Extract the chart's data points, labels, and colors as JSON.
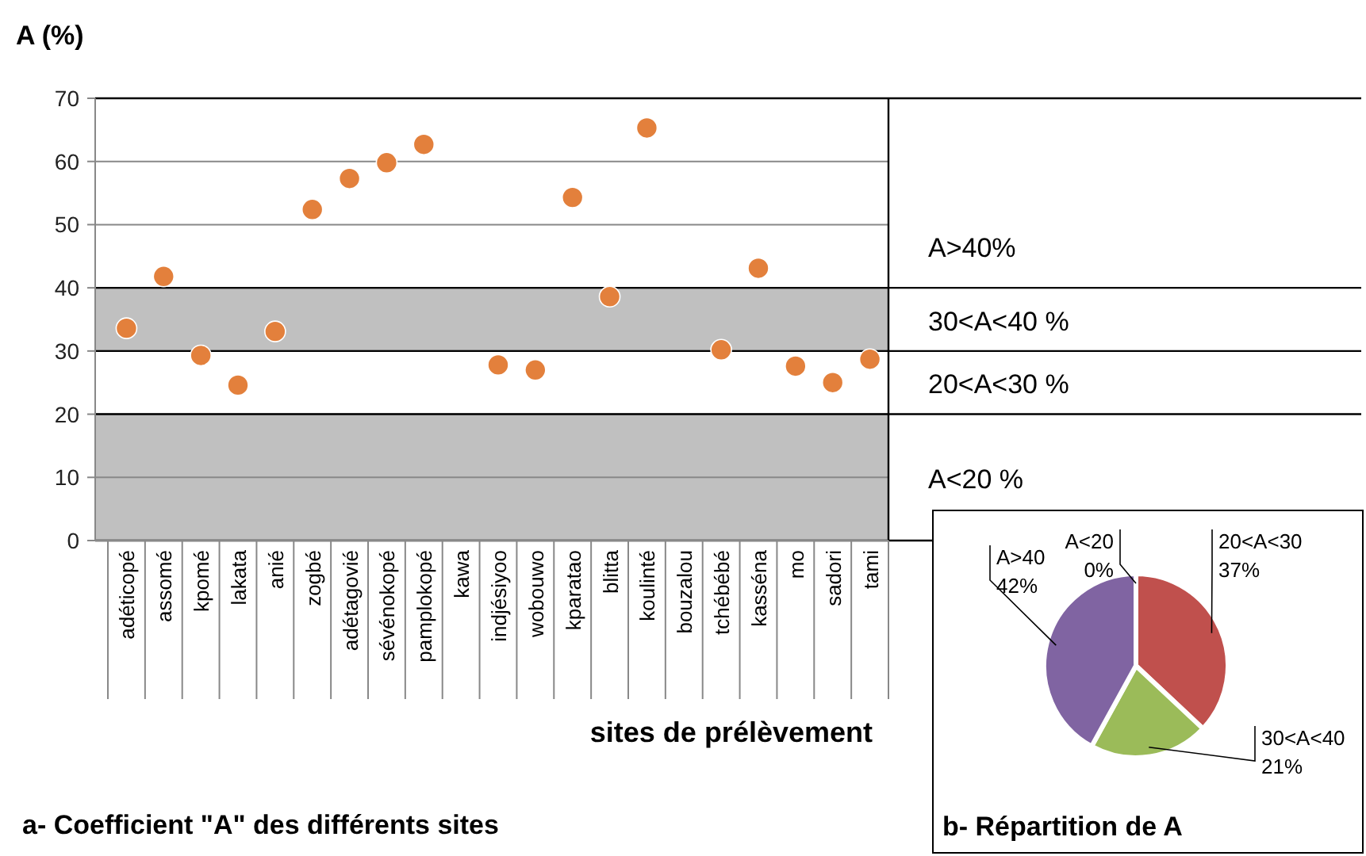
{
  "chart_data": [
    {
      "type": "scatter",
      "title": "a-  Coefficient \"A\" des différents sites",
      "xlabel": "sites de prélèvement",
      "ylabel": "A (%)",
      "categories": [
        "adéticopé",
        "assomé",
        "kpomé",
        "lakata",
        "anié",
        "zogbé",
        "adétagovié",
        "sévénokopé",
        "pamplokopé",
        "kawa",
        "indjésiyoo",
        "wobouwo",
        "kparatao",
        "blitta",
        "koulinté",
        "bouzalou",
        "tchébébé",
        "kasséna",
        "mo",
        "sadori",
        "tami"
      ],
      "series": [
        {
          "color": "#e3803c",
          "values": [
            33.6,
            41.8,
            29.3,
            24.6,
            33.1,
            52.4,
            57.3,
            59.8,
            62.7,
            null,
            27.8,
            27.0,
            54.3,
            38.6,
            65.3,
            null,
            30.2,
            43.1,
            27.6,
            25.0,
            28.7
          ]
        }
      ],
      "ylim": [
        0,
        70
      ],
      "yticks": [
        0,
        10,
        20,
        30,
        40,
        50,
        60,
        70
      ],
      "grid": "y",
      "marker": "circle",
      "bands": [
        {
          "axis": "y",
          "from": 0,
          "to": 20,
          "label": "A<20 %",
          "color": "#c0c0c0"
        },
        {
          "axis": "y",
          "from": 30,
          "to": 40,
          "label": "30<A<40  %",
          "color": "#c0c0c0"
        }
      ],
      "annotations": [
        "20<A<30 %",
        "A>40%"
      ]
    },
    {
      "type": "pie",
      "title": "b- Répartition de A",
      "categories": [
        "A<20",
        "20<A<30",
        "30<A<40",
        "A>40"
      ],
      "values": [
        0,
        37,
        21,
        42
      ],
      "colors": [
        "#4f81bd",
        "#c0504d",
        "#9bbb59",
        "#8064a2"
      ],
      "value_labels": [
        "0%",
        "37%",
        "21%",
        "42%"
      ]
    }
  ]
}
